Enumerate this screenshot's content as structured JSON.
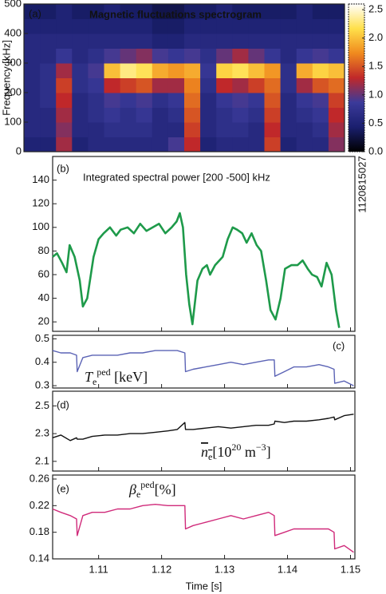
{
  "chart_data": [
    {
      "type": "heatmap",
      "panel": "(a)",
      "title": "Magnetic fluctuations spectrogram",
      "ylabel": "Frequency [kHz]",
      "xlim": [
        1.1027,
        1.1507
      ],
      "ylim": [
        0,
        500
      ],
      "yticks": [
        0,
        100,
        200,
        300,
        400,
        500
      ],
      "x_bins": [
        1.1027,
        1.1051,
        1.1075,
        1.1099,
        1.1123,
        1.1147,
        1.1171,
        1.1195,
        1.1219,
        1.1243,
        1.1267,
        1.1291,
        1.1315,
        1.1339,
        1.1363,
        1.1387,
        1.1411,
        1.1435,
        1.1459,
        1.1483,
        1.1507
      ],
      "y_bins": [
        0,
        50,
        100,
        150,
        200,
        250,
        300,
        350,
        400,
        450,
        500
      ],
      "z": [
        [
          0.5,
          0.5,
          1.2,
          0.5,
          0.6,
          0.6,
          0.6,
          0.6,
          0.6,
          0.9,
          1.3,
          0.5,
          0.6,
          0.6,
          0.6,
          1.4,
          0.5,
          0.6,
          0.6,
          1.1
        ],
        [
          0.6,
          0.6,
          1.1,
          0.6,
          0.6,
          0.7,
          0.7,
          0.7,
          0.6,
          0.6,
          1.4,
          0.6,
          0.7,
          0.7,
          0.6,
          1.3,
          0.6,
          0.6,
          0.7,
          1.2
        ],
        [
          0.6,
          0.6,
          1.2,
          0.6,
          0.7,
          0.8,
          0.7,
          0.8,
          0.6,
          0.7,
          1.5,
          0.6,
          0.7,
          0.8,
          0.7,
          1.4,
          0.6,
          0.7,
          0.8,
          1.3
        ],
        [
          0.6,
          0.7,
          1.3,
          0.6,
          0.7,
          0.9,
          0.8,
          0.9,
          0.7,
          0.8,
          1.6,
          0.6,
          0.8,
          0.9,
          0.8,
          1.5,
          0.6,
          0.8,
          0.9,
          1.4
        ],
        [
          0.6,
          0.7,
          1.4,
          0.7,
          0.8,
          1.3,
          1.4,
          1.5,
          1.2,
          1.2,
          1.7,
          0.7,
          1.3,
          1.2,
          1.4,
          1.6,
          0.7,
          1.2,
          1.5,
          1.6
        ],
        [
          0.6,
          0.7,
          1.2,
          0.7,
          0.9,
          2.0,
          2.3,
          2.2,
          1.9,
          1.8,
          1.9,
          0.8,
          2.1,
          2.2,
          2.0,
          1.8,
          0.7,
          1.9,
          2.1,
          2.0
        ],
        [
          0.6,
          0.6,
          0.8,
          0.6,
          0.7,
          0.9,
          1.0,
          1.1,
          0.9,
          0.8,
          0.9,
          0.7,
          1.0,
          1.2,
          1.0,
          0.8,
          0.6,
          0.8,
          0.9,
          0.8
        ],
        [
          0.6,
          0.6,
          0.6,
          0.6,
          0.6,
          0.6,
          0.6,
          0.6,
          0.5,
          0.5,
          0.6,
          0.6,
          0.6,
          0.6,
          0.6,
          0.6,
          0.6,
          0.6,
          0.6,
          0.6
        ],
        [
          0.5,
          0.5,
          0.5,
          0.5,
          0.5,
          0.5,
          0.5,
          0.5,
          0.4,
          0.4,
          0.5,
          0.5,
          0.5,
          0.5,
          0.5,
          0.5,
          0.5,
          0.5,
          0.5,
          0.5
        ],
        [
          0.4,
          0.4,
          0.5,
          0.4,
          0.4,
          0.5,
          0.4,
          0.4,
          0.3,
          0.3,
          0.4,
          0.4,
          0.5,
          0.4,
          0.4,
          0.4,
          0.4,
          0.5,
          0.4,
          0.4
        ]
      ],
      "zlim": [
        0,
        2.6
      ],
      "colorscale": [
        "#000000",
        "#1a1f6e",
        "#3b3a9a",
        "#c0282a",
        "#f08a1e",
        "#ffe04a",
        "#ffffff"
      ],
      "colorbar_ticks": [
        {
          "value": 0,
          "label": "0.0"
        },
        0.5,
        {
          "value": 1,
          "label": "1.0"
        },
        1.5,
        {
          "value": 2,
          "label": "2.0"
        },
        2.5
      ]
    },
    {
      "type": "line",
      "panel": "(b)",
      "title": "Integrated spectral power [200 -500] kHz",
      "shot": "1120815027",
      "xlim": [
        1.1027,
        1.1507
      ],
      "xticks": [
        1.11,
        1.12,
        1.13,
        1.14,
        1.15
      ],
      "ylim": [
        12,
        160
      ],
      "yticks": [
        20,
        40,
        60,
        80,
        100,
        120,
        140
      ],
      "x": [
        1.1027,
        1.1034,
        1.1042,
        1.1049,
        1.1054,
        1.1062,
        1.107,
        1.1075,
        1.1082,
        1.1092,
        1.11,
        1.1108,
        1.1118,
        1.1128,
        1.1135,
        1.1146,
        1.1156,
        1.1166,
        1.1176,
        1.1186,
        1.1196,
        1.1206,
        1.1216,
        1.1224,
        1.1229,
        1.1234,
        1.1239,
        1.1244,
        1.1249,
        1.1257,
        1.1265,
        1.1272,
        1.1277,
        1.1285,
        1.1297,
        1.1305,
        1.1313,
        1.132,
        1.1328,
        1.1335,
        1.1343,
        1.1351,
        1.1358,
        1.1366,
        1.1373,
        1.1381,
        1.1389,
        1.1396,
        1.1406,
        1.1416,
        1.1424,
        1.1432,
        1.1439,
        1.1447,
        1.1454,
        1.1462,
        1.147,
        1.1477,
        1.1482
      ],
      "series": [
        {
          "color": "#1e9a4a",
          "values": [
            75,
            78,
            70,
            62,
            85,
            75,
            55,
            33,
            40,
            75,
            90,
            95,
            100,
            93,
            98,
            100,
            95,
            103,
            97,
            100,
            103,
            95,
            100,
            105,
            112,
            100,
            60,
            35,
            18,
            55,
            65,
            68,
            60,
            68,
            75,
            90,
            100,
            98,
            95,
            87,
            95,
            85,
            80,
            55,
            30,
            22,
            40,
            65,
            68,
            68,
            72,
            65,
            60,
            58,
            50,
            70,
            60,
            30,
            15
          ]
        }
      ]
    },
    {
      "type": "line",
      "panel": "(c)",
      "annotation": [
        {
          "text": "T",
          "style": "italic"
        },
        {
          "text": "e",
          "style": "sub"
        },
        {
          "text": "ped",
          "style": "sup"
        },
        {
          "text": " [keV]",
          "style": "normal"
        }
      ],
      "xlim": [
        1.1027,
        1.1507
      ],
      "xticks": [
        1.11,
        1.12,
        1.13,
        1.14,
        1.15
      ],
      "ylim": [
        0.29,
        0.515
      ],
      "yticks": [
        0.3,
        0.4,
        0.5
      ],
      "x": [
        1.1027,
        1.104,
        1.1055,
        1.1065,
        1.1066,
        1.1075,
        1.109,
        1.111,
        1.113,
        1.115,
        1.117,
        1.119,
        1.121,
        1.1225,
        1.1237,
        1.1238,
        1.125,
        1.127,
        1.129,
        1.131,
        1.133,
        1.135,
        1.137,
        1.1379,
        1.138,
        1.1395,
        1.141,
        1.143,
        1.145,
        1.1465,
        1.1474,
        1.1475,
        1.149,
        1.1505
      ],
      "series": [
        {
          "color": "#5b63b5",
          "values": [
            0.45,
            0.44,
            0.44,
            0.43,
            0.36,
            0.42,
            0.43,
            0.43,
            0.43,
            0.44,
            0.44,
            0.45,
            0.45,
            0.45,
            0.44,
            0.36,
            0.37,
            0.38,
            0.39,
            0.4,
            0.39,
            0.4,
            0.41,
            0.41,
            0.34,
            0.36,
            0.38,
            0.38,
            0.39,
            0.38,
            0.37,
            0.31,
            0.32,
            0.3
          ]
        }
      ]
    },
    {
      "type": "line",
      "panel": "(d)",
      "annotation": [
        {
          "text": "n",
          "style": "italic-overline"
        },
        {
          "text": "e",
          "style": "sub-overline"
        },
        {
          "text": "[10",
          "style": "normal"
        },
        {
          "text": "20",
          "style": "sup"
        },
        {
          "text": " m",
          "style": "normal"
        },
        {
          "text": "−3",
          "style": "sup"
        },
        {
          "text": "]",
          "style": "normal"
        }
      ],
      "xlim": [
        1.1027,
        1.1507
      ],
      "xticks": [
        1.11,
        1.12,
        1.13,
        1.14,
        1.15
      ],
      "ylim": [
        2.03,
        2.606
      ],
      "yticks": [
        2.1,
        2.3,
        2.5
      ],
      "x": [
        1.1027,
        1.104,
        1.1055,
        1.1065,
        1.1066,
        1.1075,
        1.109,
        1.111,
        1.113,
        1.115,
        1.117,
        1.119,
        1.121,
        1.1225,
        1.1237,
        1.1238,
        1.125,
        1.127,
        1.129,
        1.131,
        1.133,
        1.135,
        1.137,
        1.1379,
        1.138,
        1.1395,
        1.141,
        1.143,
        1.145,
        1.1465,
        1.1474,
        1.1475,
        1.149,
        1.1505
      ],
      "series": [
        {
          "color": "#111111",
          "values": [
            2.27,
            2.29,
            2.25,
            2.27,
            2.26,
            2.26,
            2.28,
            2.29,
            2.29,
            2.3,
            2.3,
            2.31,
            2.32,
            2.33,
            2.38,
            2.33,
            2.33,
            2.34,
            2.35,
            2.34,
            2.35,
            2.36,
            2.36,
            2.37,
            2.39,
            2.38,
            2.39,
            2.39,
            2.4,
            2.41,
            2.42,
            2.4,
            2.43,
            2.44
          ]
        }
      ]
    },
    {
      "type": "line",
      "panel": "(e)",
      "xlabel": "Time [s]",
      "annotation": [
        {
          "text": "β",
          "style": "italic"
        },
        {
          "text": "e",
          "style": "sub"
        },
        {
          "text": "ped",
          "style": "sup"
        },
        {
          "text": "[%]",
          "style": "normal"
        }
      ],
      "xlim": [
        1.1027,
        1.1507
      ],
      "xticks": [
        1.11,
        1.12,
        1.13,
        1.14,
        1.15
      ],
      "xticklabels": true,
      "ylim": [
        0.14,
        0.266
      ],
      "yticks": [
        0.14,
        0.18,
        0.22,
        0.26
      ],
      "x": [
        1.1027,
        1.104,
        1.1055,
        1.1065,
        1.1066,
        1.1075,
        1.109,
        1.111,
        1.113,
        1.115,
        1.117,
        1.119,
        1.121,
        1.1225,
        1.1237,
        1.1238,
        1.125,
        1.127,
        1.129,
        1.131,
        1.133,
        1.135,
        1.137,
        1.1379,
        1.138,
        1.1395,
        1.141,
        1.143,
        1.145,
        1.1465,
        1.1474,
        1.1475,
        1.149,
        1.1505
      ],
      "series": [
        {
          "color": "#d02a7a",
          "values": [
            0.215,
            0.21,
            0.205,
            0.2,
            0.175,
            0.205,
            0.21,
            0.21,
            0.215,
            0.215,
            0.22,
            0.222,
            0.22,
            0.22,
            0.22,
            0.185,
            0.19,
            0.195,
            0.2,
            0.205,
            0.2,
            0.205,
            0.21,
            0.205,
            0.175,
            0.18,
            0.185,
            0.185,
            0.185,
            0.185,
            0.18,
            0.155,
            0.16,
            0.15
          ]
        }
      ]
    }
  ]
}
